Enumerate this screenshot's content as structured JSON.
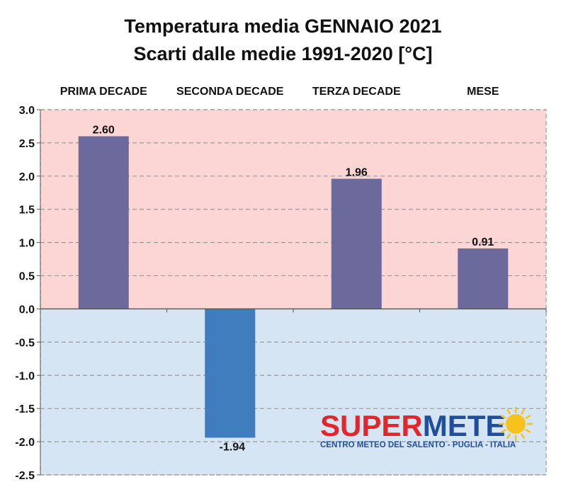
{
  "chart_data": {
    "type": "bar",
    "title": "Temperatura media GENNAIO 2021",
    "subtitle": "Scarti dalle medie 1991-2020 [°C]",
    "categories": [
      "PRIMA DECADE",
      "SECONDA DECADE",
      "TERZA DECADE",
      "MESE"
    ],
    "values": [
      2.6,
      -1.94,
      1.96,
      0.91
    ],
    "value_labels": [
      "2.60",
      "-1.94",
      "1.96",
      "0.91"
    ],
    "ylim": [
      -2.5,
      3.0
    ],
    "yticks": [
      "3.0",
      "2.5",
      "2.0",
      "1.5",
      "1.0",
      "0.5",
      "0.0",
      "-0.5",
      "-1.0",
      "-1.5",
      "-2.0",
      "-2.5"
    ],
    "grid": true,
    "category_labels_position": "top",
    "colors": {
      "positive_bar": "#6c6a9c",
      "negative_bar": "#3f7dbf",
      "positive_background": "#fcd5d5",
      "negative_background": "#d5e5f4",
      "grid": "#9a9a9a"
    }
  },
  "watermark": {
    "text_part1": "SUPER",
    "text_part2": "METE",
    "subtitle": "CENTRO METEO DEL SALENTO - PUGLIA - ITALIA",
    "color_part1": "#e4262a",
    "color_part2": "#1f4e9c",
    "sun_color": "#f7c21b"
  }
}
